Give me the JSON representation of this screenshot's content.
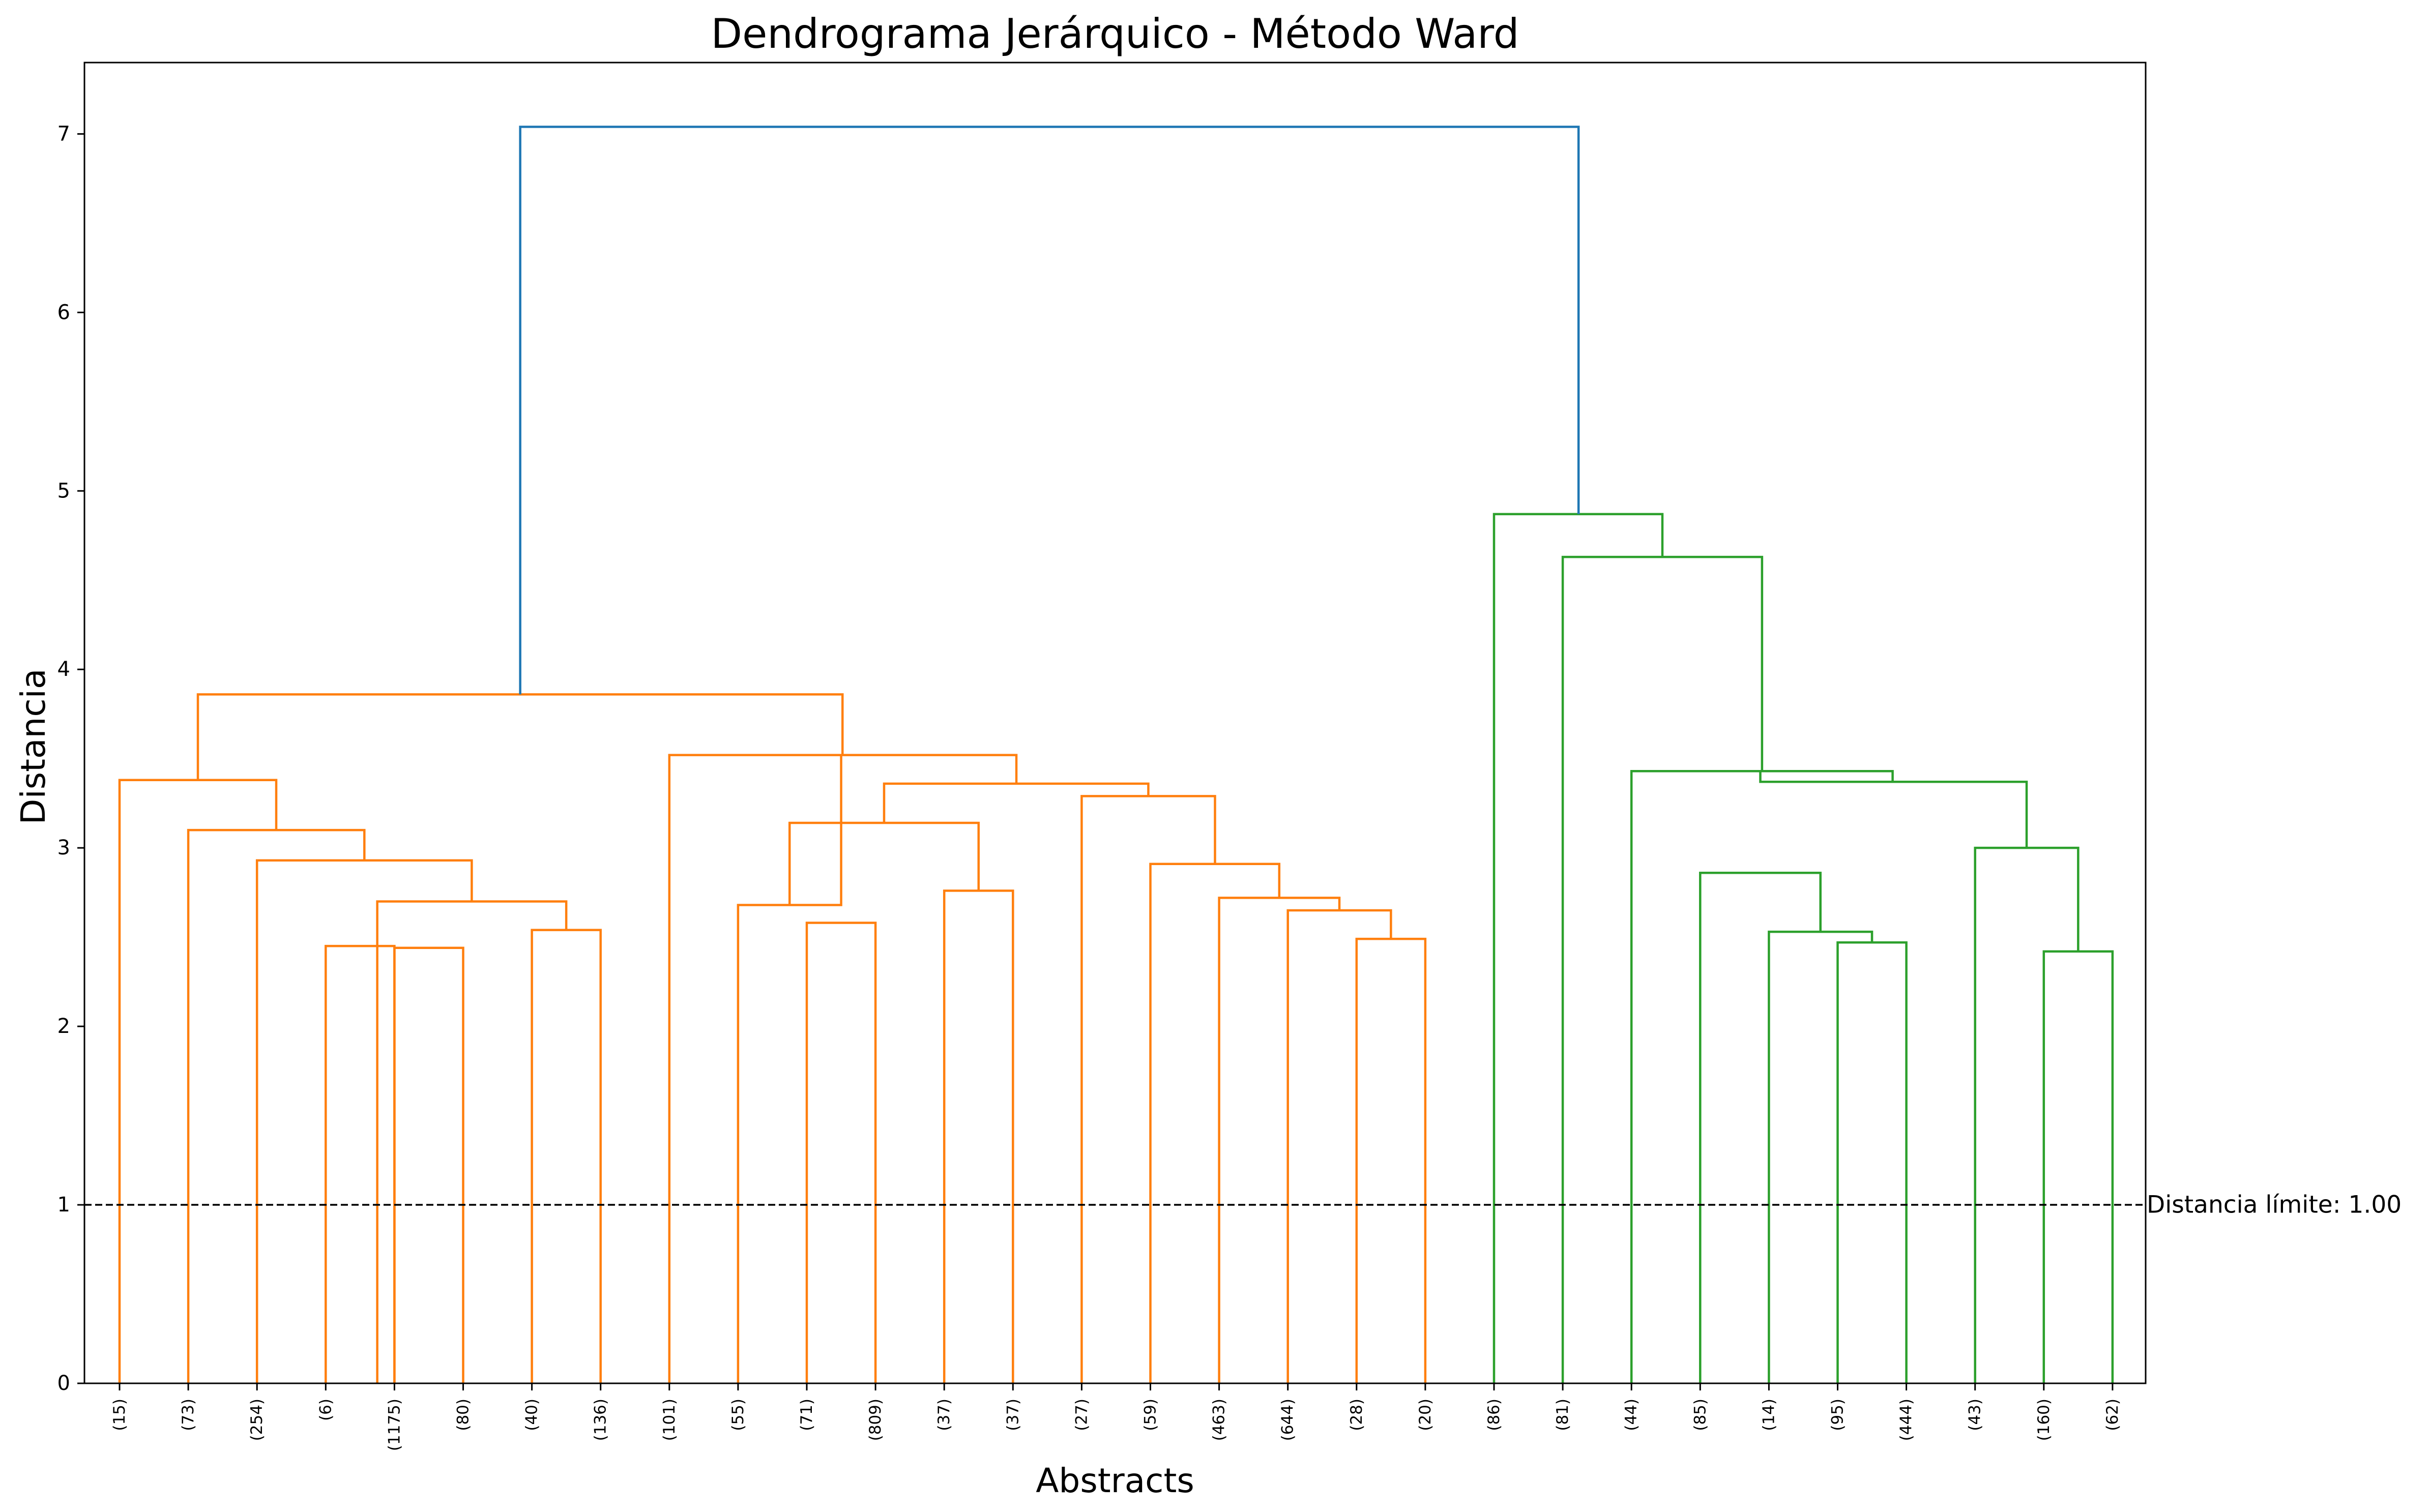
{
  "chart_data": {
    "type": "dendrogram",
    "title": "Dendrograma Jerárquico - Método Ward",
    "xlabel": "Abstracts",
    "ylabel": "Distancia",
    "ylim": [
      0,
      7.4
    ],
    "yticks": [
      0,
      1,
      2,
      3,
      4,
      5,
      6,
      7
    ],
    "threshold": {
      "value": 1.0,
      "label": "Distancia límite: 1.00",
      "style": "dashed"
    },
    "colors": {
      "above_threshold": "#1f77b4",
      "cluster_1": "#ff7f0e",
      "cluster_2": "#2ca02c",
      "threshold_line": "#000000"
    },
    "leaves": [
      "(15)",
      "(73)",
      "(254)",
      "(6)",
      "(1175)",
      "(80)",
      "(40)",
      "(136)",
      "(101)",
      "(55)",
      "(71)",
      "(809)",
      "(37)",
      "(37)",
      "(27)",
      "(59)",
      "(463)",
      "(644)",
      "(28)",
      "(20)",
      "(86)",
      "(81)",
      "(44)",
      "(85)",
      "(14)",
      "(95)",
      "(444)",
      "(43)",
      "(160)",
      "(62)"
    ],
    "merges": [
      {
        "left": 3,
        "right": 4,
        "height": 2.45,
        "color": "cluster_1"
      },
      {
        "left": 4,
        "right": 5,
        "height": 2.44,
        "color": "cluster_1"
      },
      {
        "left": 6,
        "right": 7,
        "height": 2.54,
        "color": "cluster_1"
      },
      {
        "left": 3.75,
        "right": 6.5,
        "height": 2.7,
        "color": "cluster_1"
      },
      {
        "left": 2,
        "right": 5.125,
        "height": 2.93,
        "color": "cluster_1"
      },
      {
        "left": 1,
        "right": 3.5625,
        "height": 3.1,
        "color": "cluster_1"
      },
      {
        "left": 0,
        "right": 2.28,
        "height": 3.38,
        "color": "cluster_1"
      },
      {
        "left": 10,
        "right": 11,
        "height": 2.58,
        "color": "cluster_1"
      },
      {
        "left": 9,
        "right": 10.5,
        "height": 2.68,
        "color": "cluster_1"
      },
      {
        "left": 12,
        "right": 13,
        "height": 2.76,
        "color": "cluster_1"
      },
      {
        "left": 9.75,
        "right": 12.5,
        "height": 3.14,
        "color": "cluster_1"
      },
      {
        "left": 18,
        "right": 19,
        "height": 2.49,
        "color": "cluster_1"
      },
      {
        "left": 17,
        "right": 18.5,
        "height": 2.65,
        "color": "cluster_1"
      },
      {
        "left": 16,
        "right": 17.75,
        "height": 2.72,
        "color": "cluster_1"
      },
      {
        "left": 15,
        "right": 16.875,
        "height": 2.91,
        "color": "cluster_1"
      },
      {
        "left": 14,
        "right": 15.94,
        "height": 3.29,
        "color": "cluster_1"
      },
      {
        "left": 11.125,
        "right": 14.97,
        "height": 3.36,
        "color": "cluster_1"
      },
      {
        "left": 8,
        "right": 13.05,
        "height": 3.52,
        "color": "cluster_1"
      },
      {
        "left": 1.14,
        "right": 10.52,
        "height": 3.86,
        "color": "cluster_1"
      },
      {
        "left": 25,
        "right": 26,
        "height": 2.47,
        "color": "cluster_2"
      },
      {
        "left": 24,
        "right": 25.5,
        "height": 2.53,
        "color": "cluster_2"
      },
      {
        "left": 23,
        "right": 24.75,
        "height": 2.86,
        "color": "cluster_2"
      },
      {
        "left": 28,
        "right": 29,
        "height": 2.42,
        "color": "cluster_2"
      },
      {
        "left": 27,
        "right": 28.5,
        "height": 3.0,
        "color": "cluster_2"
      },
      {
        "left": 23.875,
        "right": 27.75,
        "height": 3.37,
        "color": "cluster_2"
      },
      {
        "left": 22,
        "right": 25.8,
        "height": 3.43,
        "color": "cluster_2"
      },
      {
        "left": 21,
        "right": 23.9,
        "height": 4.63,
        "color": "cluster_2"
      },
      {
        "left": 20,
        "right": 22.45,
        "height": 4.87,
        "color": "cluster_2"
      },
      {
        "left": 5.83,
        "right": 21.23,
        "height": 7.04,
        "color": "above_threshold"
      }
    ]
  }
}
